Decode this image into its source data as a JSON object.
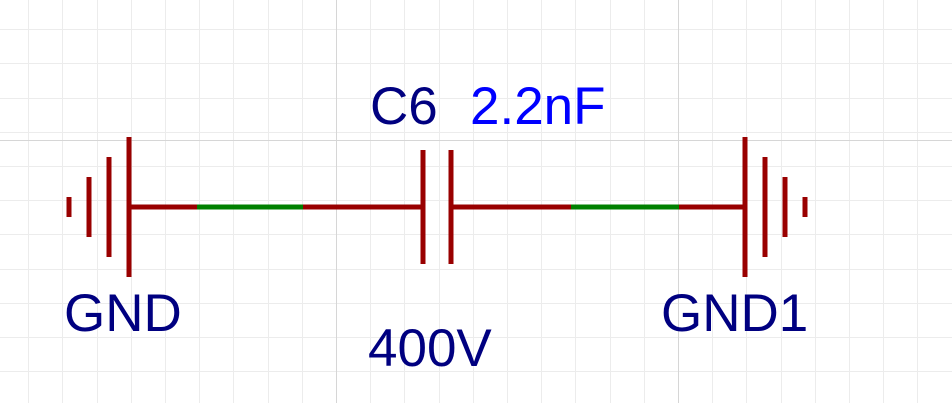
{
  "colors": {
    "background": "#ffffff",
    "grid_minor": "#ececec",
    "grid_major": "#d6d6d6",
    "component": "#990000",
    "wire": "#008000",
    "designator_text": "#000080",
    "value_text": "#0000ff"
  },
  "capacitor": {
    "designator": "C6",
    "value": "2.2nF",
    "voltage": "400V"
  },
  "ground_left": {
    "net_label": "GND",
    "icon": "ground-symbol-icon"
  },
  "ground_right": {
    "net_label": "GND1",
    "icon": "ground-symbol-icon"
  }
}
